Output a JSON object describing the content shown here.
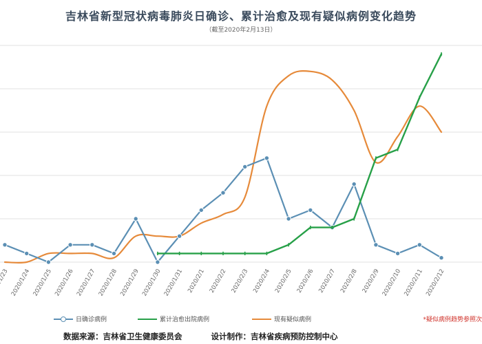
{
  "header": {
    "title": "吉林省新型冠状病毒肺炎日确诊、累计治愈及现有疑似病例变化趋势",
    "subtitle": "（截至2020年2月13日）"
  },
  "footer": {
    "source_label": "数据来源：",
    "source_value": "吉林省卫生健康委员会",
    "design_label": "设计制作：",
    "design_value": "吉林省疾病预防控制中心"
  },
  "note": "*疑似病例趋势参照次",
  "colors": {
    "daily_confirmed": "#5b8fb4",
    "cumulative_cured": "#27a048",
    "suspected": "#e68a3a",
    "grid": "#e2e2e2",
    "note": "#d0342c"
  },
  "chart_data": {
    "type": "line",
    "title": "吉林省新型冠状病毒肺炎日确诊、累计治愈及现有疑似病例变化趋势",
    "subtitle": "（截至2020年2月13日）",
    "categories": [
      "2020/1/23",
      "2020/1/24",
      "2020/1/25",
      "2020/1/26",
      "2020/1/27",
      "2020/1/28",
      "2020/1/29",
      "2020/1/30",
      "2020/1/31",
      "2020/2/1",
      "2020/2/2",
      "2020/2/3",
      "2020/2/4",
      "2020/2/5",
      "2020/2/6",
      "2020/2/7",
      "2020/2/8",
      "2020/2/9",
      "2020/2/10",
      "2020/2/11",
      "2020/2/12"
    ],
    "series": [
      {
        "name": "日确诊病例",
        "color": "#5b8fb4",
        "markers": true,
        "values": [
          2,
          1,
          0,
          2,
          2,
          1,
          5,
          0,
          3,
          6,
          8,
          11,
          12,
          5,
          6,
          4,
          9,
          2,
          1,
          2,
          0.5
        ]
      },
      {
        "name": "累计治愈出院病例",
        "color": "#27a048",
        "markers": true,
        "values": [
          null,
          null,
          null,
          null,
          null,
          null,
          null,
          1,
          1,
          1,
          1,
          1,
          1,
          2,
          4,
          4,
          5,
          12,
          13,
          19,
          24
        ]
      },
      {
        "name": "现有疑似病例",
        "color": "#e68a3a",
        "markers": false,
        "values": [
          0,
          0,
          1,
          1,
          1,
          0.5,
          3,
          3,
          3,
          4.5,
          5.5,
          7.5,
          18,
          21.5,
          22,
          21,
          17.5,
          11.5,
          14.5,
          18,
          15
        ]
      }
    ],
    "ylim": [
      0,
      25
    ],
    "grid": true,
    "legend": "bottom"
  }
}
